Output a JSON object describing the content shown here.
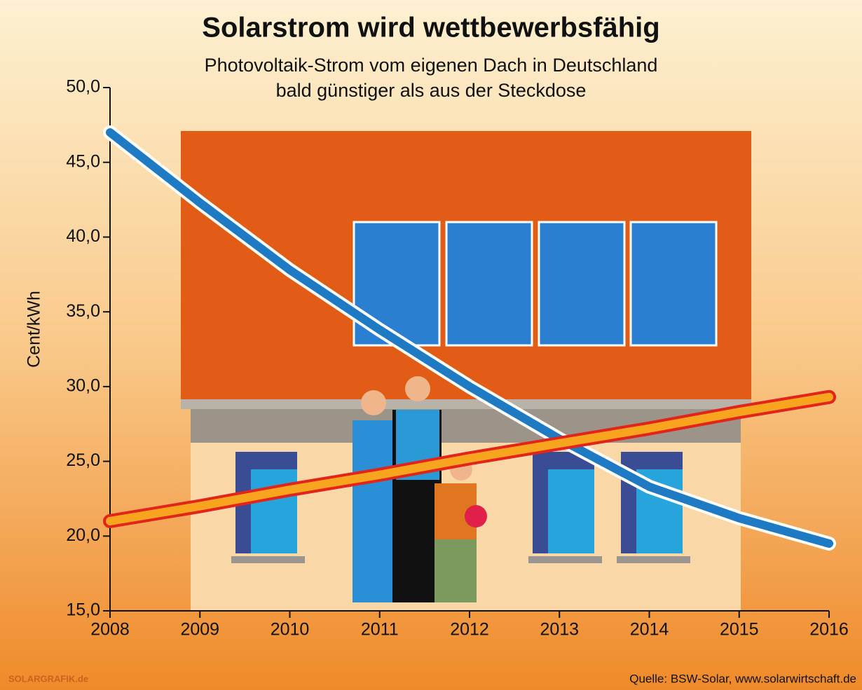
{
  "chart_data": {
    "type": "line",
    "title": "Solarstrom wird wettbewerbsfähig",
    "subtitle": [
      "Photovoltaik-Strom vom eigenen Dach in Deutschland",
      "bald günstiger als aus der Steckdose"
    ],
    "ylabel": "Cent/kWh",
    "x": [
      2008,
      2009,
      2010,
      2011,
      2012,
      2013,
      2014,
      2015,
      2016
    ],
    "xlim": [
      2008,
      2016
    ],
    "xticks": [
      2008,
      2009,
      2010,
      2011,
      2012,
      2013,
      2014,
      2015,
      2016
    ],
    "ylim": [
      15,
      50
    ],
    "yticks": [
      {
        "value": 15,
        "label": "15,0"
      },
      {
        "value": 20,
        "label": "20,0"
      },
      {
        "value": 25,
        "label": "25,0"
      },
      {
        "value": 30,
        "label": "30,0"
      },
      {
        "value": 35,
        "label": "35,0"
      },
      {
        "value": 40,
        "label": "40,0"
      },
      {
        "value": 45,
        "label": "45,0"
      },
      {
        "value": 50,
        "label": "50,0"
      }
    ],
    "series": [
      {
        "color": "#1f7ac4",
        "outline": "#ffffff",
        "values": [
          47.0,
          42.3,
          37.8,
          33.8,
          30.0,
          26.5,
          23.3,
          21.2,
          19.5
        ]
      },
      {
        "color": "#f7a51e",
        "outline": "#e3241b",
        "values": [
          21.0,
          22.0,
          23.1,
          24.1,
          25.2,
          26.2,
          27.2,
          28.3,
          29.3
        ]
      }
    ],
    "credit": "SOLARGRAFIK.de",
    "source": "Quelle: BSW-Solar, www.solarwirtschaft.de"
  }
}
